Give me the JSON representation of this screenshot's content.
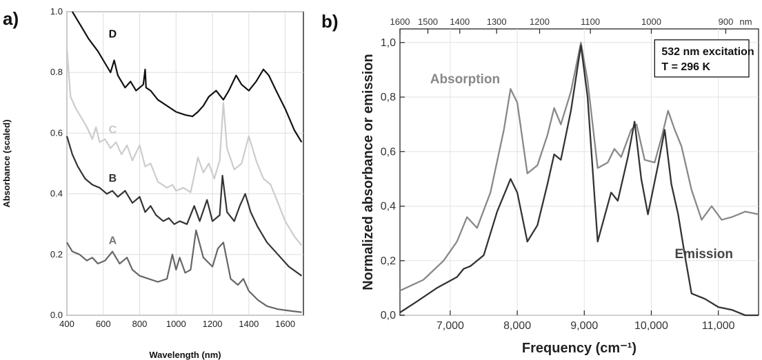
{
  "panels": {
    "a_label": "a)",
    "b_label": "b)"
  },
  "chart_data": [
    {
      "type": "line",
      "panel": "a",
      "xlabel": "Wavelength (nm)",
      "ylabel": "Absorbance (scaled)",
      "xlim": [
        400,
        1700
      ],
      "ylim": [
        0.0,
        1.0
      ],
      "x_ticks": [
        400,
        600,
        800,
        1000,
        1200,
        1400,
        1600
      ],
      "y_ticks": [
        "0.0",
        "0.2",
        "0.4",
        "0.6",
        "0.8",
        "1.0"
      ],
      "grid": true,
      "series": [
        {
          "name": "D",
          "color": "#111111",
          "points": [
            [
              430,
              1.0
            ],
            [
              470,
              0.96
            ],
            [
              520,
              0.91
            ],
            [
              570,
              0.87
            ],
            [
              610,
              0.83
            ],
            [
              640,
              0.8
            ],
            [
              660,
              0.84
            ],
            [
              680,
              0.79
            ],
            [
              720,
              0.75
            ],
            [
              750,
              0.77
            ],
            [
              780,
              0.74
            ],
            [
              820,
              0.76
            ],
            [
              830,
              0.81
            ],
            [
              835,
              0.75
            ],
            [
              860,
              0.74
            ],
            [
              900,
              0.71
            ],
            [
              950,
              0.69
            ],
            [
              1000,
              0.67
            ],
            [
              1050,
              0.66
            ],
            [
              1090,
              0.655
            ],
            [
              1120,
              0.67
            ],
            [
              1150,
              0.69
            ],
            [
              1180,
              0.72
            ],
            [
              1220,
              0.74
            ],
            [
              1260,
              0.71
            ],
            [
              1290,
              0.74
            ],
            [
              1330,
              0.79
            ],
            [
              1360,
              0.76
            ],
            [
              1400,
              0.74
            ],
            [
              1440,
              0.77
            ],
            [
              1480,
              0.81
            ],
            [
              1510,
              0.79
            ],
            [
              1550,
              0.74
            ],
            [
              1600,
              0.68
            ],
            [
              1650,
              0.61
            ],
            [
              1690,
              0.57
            ]
          ]
        },
        {
          "name": "C",
          "color": "#cccccc",
          "points": [
            [
              400,
              0.88
            ],
            [
              420,
              0.72
            ],
            [
              450,
              0.68
            ],
            [
              480,
              0.65
            ],
            [
              510,
              0.62
            ],
            [
              540,
              0.58
            ],
            [
              560,
              0.62
            ],
            [
              580,
              0.57
            ],
            [
              610,
              0.58
            ],
            [
              640,
              0.55
            ],
            [
              670,
              0.57
            ],
            [
              700,
              0.53
            ],
            [
              730,
              0.56
            ],
            [
              760,
              0.51
            ],
            [
              800,
              0.56
            ],
            [
              830,
              0.49
            ],
            [
              860,
              0.5
            ],
            [
              880,
              0.47
            ],
            [
              900,
              0.44
            ],
            [
              950,
              0.42
            ],
            [
              980,
              0.43
            ],
            [
              1000,
              0.41
            ],
            [
              1040,
              0.42
            ],
            [
              1080,
              0.405
            ],
            [
              1100,
              0.46
            ],
            [
              1120,
              0.52
            ],
            [
              1150,
              0.47
            ],
            [
              1180,
              0.5
            ],
            [
              1210,
              0.45
            ],
            [
              1240,
              0.51
            ],
            [
              1260,
              0.7
            ],
            [
              1280,
              0.55
            ],
            [
              1320,
              0.48
            ],
            [
              1360,
              0.5
            ],
            [
              1400,
              0.59
            ],
            [
              1440,
              0.51
            ],
            [
              1480,
              0.45
            ],
            [
              1520,
              0.43
            ],
            [
              1560,
              0.37
            ],
            [
              1600,
              0.31
            ],
            [
              1650,
              0.26
            ],
            [
              1690,
              0.23
            ]
          ]
        },
        {
          "name": "B",
          "color": "#333333",
          "points": [
            [
              400,
              0.59
            ],
            [
              430,
              0.53
            ],
            [
              460,
              0.49
            ],
            [
              500,
              0.45
            ],
            [
              540,
              0.43
            ],
            [
              580,
              0.42
            ],
            [
              620,
              0.4
            ],
            [
              650,
              0.41
            ],
            [
              680,
              0.39
            ],
            [
              720,
              0.41
            ],
            [
              760,
              0.37
            ],
            [
              800,
              0.39
            ],
            [
              830,
              0.34
            ],
            [
              860,
              0.36
            ],
            [
              890,
              0.33
            ],
            [
              930,
              0.31
            ],
            [
              960,
              0.32
            ],
            [
              990,
              0.3
            ],
            [
              1020,
              0.31
            ],
            [
              1060,
              0.3
            ],
            [
              1100,
              0.36
            ],
            [
              1130,
              0.31
            ],
            [
              1170,
              0.38
            ],
            [
              1200,
              0.31
            ],
            [
              1240,
              0.33
            ],
            [
              1255,
              0.46
            ],
            [
              1280,
              0.34
            ],
            [
              1320,
              0.31
            ],
            [
              1350,
              0.36
            ],
            [
              1380,
              0.4
            ],
            [
              1410,
              0.34
            ],
            [
              1450,
              0.29
            ],
            [
              1500,
              0.24
            ],
            [
              1560,
              0.2
            ],
            [
              1620,
              0.16
            ],
            [
              1690,
              0.13
            ]
          ]
        },
        {
          "name": "A",
          "color": "#666666",
          "points": [
            [
              400,
              0.24
            ],
            [
              430,
              0.21
            ],
            [
              470,
              0.2
            ],
            [
              510,
              0.18
            ],
            [
              540,
              0.19
            ],
            [
              570,
              0.17
            ],
            [
              610,
              0.18
            ],
            [
              650,
              0.21
            ],
            [
              690,
              0.17
            ],
            [
              730,
              0.19
            ],
            [
              760,
              0.15
            ],
            [
              800,
              0.13
            ],
            [
              850,
              0.12
            ],
            [
              900,
              0.11
            ],
            [
              950,
              0.12
            ],
            [
              980,
              0.2
            ],
            [
              1000,
              0.15
            ],
            [
              1020,
              0.19
            ],
            [
              1050,
              0.14
            ],
            [
              1080,
              0.15
            ],
            [
              1110,
              0.28
            ],
            [
              1150,
              0.19
            ],
            [
              1200,
              0.16
            ],
            [
              1230,
              0.22
            ],
            [
              1260,
              0.24
            ],
            [
              1300,
              0.12
            ],
            [
              1340,
              0.1
            ],
            [
              1370,
              0.12
            ],
            [
              1400,
              0.08
            ],
            [
              1450,
              0.05
            ],
            [
              1500,
              0.03
            ],
            [
              1560,
              0.02
            ],
            [
              1620,
              0.015
            ],
            [
              1690,
              0.01
            ]
          ]
        }
      ]
    },
    {
      "type": "line",
      "panel": "b",
      "xlabel": "Frequency (cm⁻¹)",
      "ylabel": "Normalized absorbance or emission",
      "xlim": [
        6250,
        11600
      ],
      "ylim": [
        0.0,
        1.05
      ],
      "x_ticks": [
        7000,
        8000,
        9000,
        10000,
        11000
      ],
      "x_tick_labels": [
        "7,000",
        "8,000",
        "9,000",
        "10,000",
        "11,000"
      ],
      "y_ticks": [
        "0,0",
        "0,2",
        "0,4",
        "0,6",
        "0,8",
        "1,0"
      ],
      "top_axis_nm": [
        "1600",
        "1500",
        "1400",
        "1300",
        "1200",
        "1100",
        "1000",
        "900"
      ],
      "top_axis_unit": "nm",
      "annotation_line1": "532 nm excitation",
      "annotation_line2": "T = 296 K",
      "grid": true,
      "series": [
        {
          "name": "Absorption",
          "color": "#888888",
          "points": [
            [
              6250,
              0.09
            ],
            [
              6600,
              0.13
            ],
            [
              6900,
              0.2
            ],
            [
              7100,
              0.27
            ],
            [
              7250,
              0.36
            ],
            [
              7400,
              0.32
            ],
            [
              7600,
              0.45
            ],
            [
              7800,
              0.68
            ],
            [
              7900,
              0.83
            ],
            [
              8000,
              0.78
            ],
            [
              8150,
              0.52
            ],
            [
              8300,
              0.55
            ],
            [
              8450,
              0.66
            ],
            [
              8550,
              0.76
            ],
            [
              8650,
              0.7
            ],
            [
              8800,
              0.82
            ],
            [
              8950,
              1.0
            ],
            [
              9050,
              0.86
            ],
            [
              9200,
              0.54
            ],
            [
              9350,
              0.56
            ],
            [
              9450,
              0.61
            ],
            [
              9550,
              0.58
            ],
            [
              9700,
              0.68
            ],
            [
              9780,
              0.7
            ],
            [
              9900,
              0.57
            ],
            [
              10050,
              0.56
            ],
            [
              10150,
              0.65
            ],
            [
              10250,
              0.75
            ],
            [
              10350,
              0.68
            ],
            [
              10450,
              0.62
            ],
            [
              10600,
              0.46
            ],
            [
              10750,
              0.35
            ],
            [
              10900,
              0.4
            ],
            [
              11050,
              0.35
            ],
            [
              11200,
              0.36
            ],
            [
              11400,
              0.38
            ],
            [
              11600,
              0.37
            ]
          ]
        },
        {
          "name": "Emission",
          "color": "#333333",
          "points": [
            [
              6250,
              0.01
            ],
            [
              6500,
              0.05
            ],
            [
              6800,
              0.1
            ],
            [
              7100,
              0.14
            ],
            [
              7200,
              0.17
            ],
            [
              7300,
              0.18
            ],
            [
              7500,
              0.22
            ],
            [
              7700,
              0.38
            ],
            [
              7900,
              0.5
            ],
            [
              8000,
              0.45
            ],
            [
              8150,
              0.27
            ],
            [
              8300,
              0.33
            ],
            [
              8450,
              0.48
            ],
            [
              8550,
              0.59
            ],
            [
              8650,
              0.57
            ],
            [
              8800,
              0.75
            ],
            [
              8950,
              0.99
            ],
            [
              9050,
              0.8
            ],
            [
              9200,
              0.27
            ],
            [
              9300,
              0.36
            ],
            [
              9400,
              0.45
            ],
            [
              9500,
              0.42
            ],
            [
              9650,
              0.58
            ],
            [
              9750,
              0.71
            ],
            [
              9850,
              0.5
            ],
            [
              9950,
              0.37
            ],
            [
              10100,
              0.55
            ],
            [
              10200,
              0.68
            ],
            [
              10300,
              0.48
            ],
            [
              10400,
              0.37
            ],
            [
              10500,
              0.22
            ],
            [
              10600,
              0.08
            ],
            [
              10800,
              0.06
            ],
            [
              11000,
              0.03
            ],
            [
              11200,
              0.02
            ],
            [
              11400,
              0.0
            ],
            [
              11600,
              0.0
            ]
          ]
        }
      ]
    }
  ]
}
